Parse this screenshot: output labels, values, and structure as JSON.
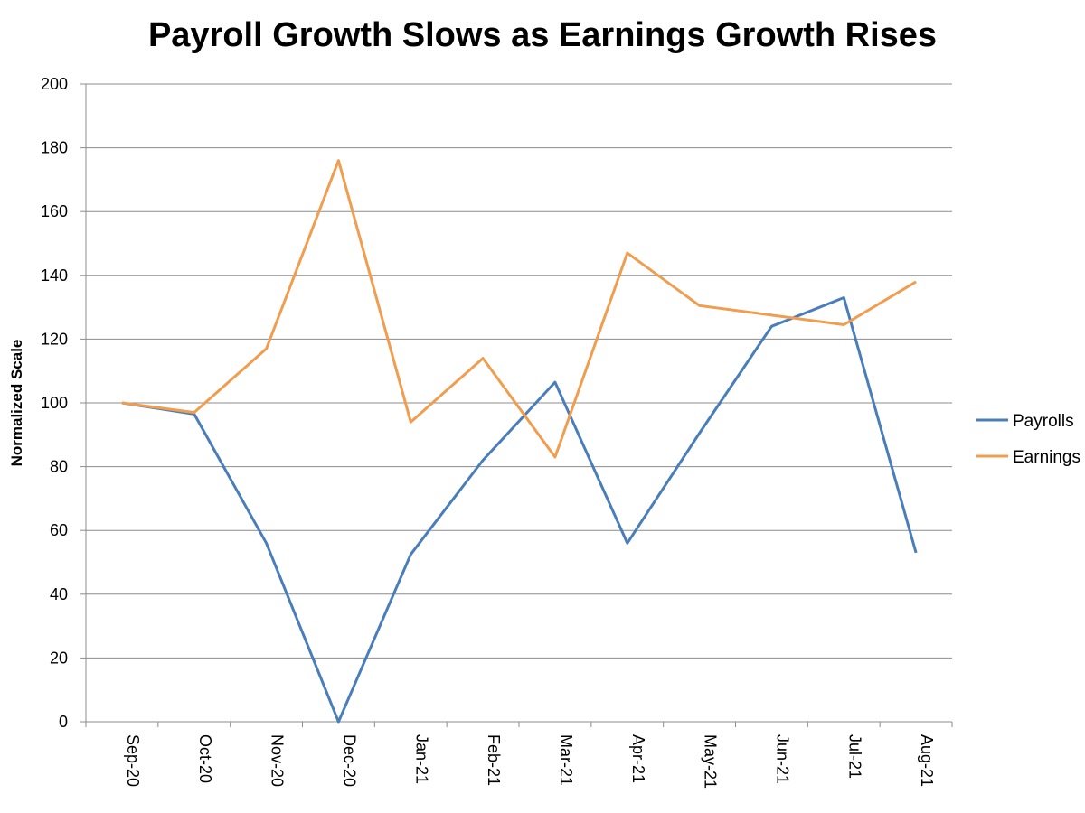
{
  "chart_data": {
    "type": "line",
    "title": "Payroll Growth Slows as Earnings Growth Rises",
    "xlabel": "",
    "ylabel": "Normalized Scale",
    "ylim": [
      0,
      200
    ],
    "yticks": [
      0,
      20,
      40,
      60,
      80,
      100,
      120,
      140,
      160,
      180,
      200
    ],
    "grid": true,
    "legend": "right",
    "categories": [
      "Sep-20",
      "Oct-20",
      "Nov-20",
      "Dec-20",
      "Jan-21",
      "Feb-21",
      "Mar-21",
      "Apr-21",
      "May-21",
      "Jun-21",
      "Jul-21",
      "Aug-21"
    ],
    "series": [
      {
        "name": "Payrolls",
        "color": "#4a7ebb",
        "values": [
          100,
          96.5,
          56,
          0,
          52.5,
          82,
          106.5,
          56,
          90.5,
          124,
          133,
          53
        ]
      },
      {
        "name": "Earnings",
        "color": "#f09d4f",
        "values": [
          100,
          97,
          117,
          176,
          94,
          114,
          83,
          147,
          130.5,
          127.5,
          124.5,
          138
        ]
      }
    ]
  }
}
